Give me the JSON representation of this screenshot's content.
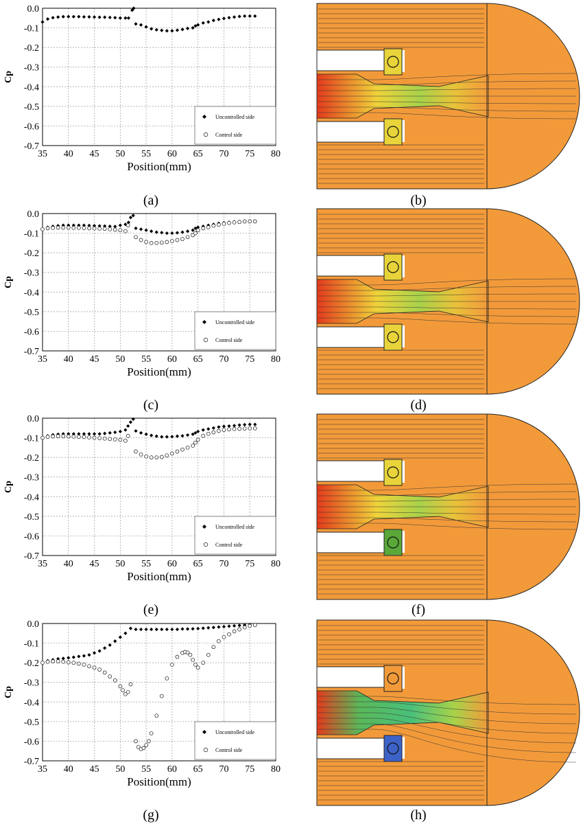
{
  "figure": {
    "panel_labels": [
      "(a)",
      "(b)",
      "(c)",
      "(d)",
      "(e)",
      "(f)",
      "(g)",
      "(h)"
    ]
  },
  "chart_data": [
    {
      "type": "scatter",
      "panel": "(a)",
      "xlabel": "Position(mm)",
      "ylabel": "Cp",
      "xlim": [
        35,
        80
      ],
      "ylim": [
        -0.7,
        0.0
      ],
      "xticks": [
        35,
        40,
        45,
        50,
        55,
        60,
        65,
        70,
        75,
        80
      ],
      "yticks": [
        "0.0",
        "-0.1",
        "-0.2",
        "-0.3",
        "-0.4",
        "-0.5",
        "-0.6",
        "-0.7"
      ],
      "grid": true,
      "legend_position": "bottom-right",
      "series": [
        {
          "name": "Uncontrolled side",
          "marker": "filled-diamond",
          "x": [
            35,
            36,
            37,
            38,
            39,
            40,
            41,
            42,
            43,
            44,
            45,
            46,
            47,
            48,
            49,
            50,
            51,
            51.6,
            52.3,
            52.6,
            53,
            54,
            55,
            56,
            57,
            58,
            59,
            60,
            61,
            62,
            63,
            64,
            64.5,
            65,
            66,
            67,
            68,
            69,
            70,
            71,
            72,
            73,
            74,
            75,
            76
          ],
          "y": [
            -0.07,
            -0.055,
            -0.048,
            -0.045,
            -0.043,
            -0.043,
            -0.043,
            -0.043,
            -0.044,
            -0.044,
            -0.045,
            -0.046,
            -0.046,
            -0.047,
            -0.048,
            -0.05,
            -0.05,
            -0.05,
            -0.01,
            0.0,
            -0.08,
            -0.085,
            -0.095,
            -0.105,
            -0.11,
            -0.113,
            -0.115,
            -0.115,
            -0.112,
            -0.108,
            -0.103,
            -0.1,
            -0.09,
            -0.085,
            -0.075,
            -0.07,
            -0.062,
            -0.057,
            -0.052,
            -0.048,
            -0.045,
            -0.042,
            -0.04,
            -0.04,
            -0.04
          ]
        },
        {
          "name": "Control side",
          "marker": "open-circle",
          "x": [],
          "y": []
        }
      ]
    },
    {
      "type": "scatter",
      "panel": "(c)",
      "xlabel": "Position(mm)",
      "ylabel": "Cp",
      "xlim": [
        35,
        80
      ],
      "ylim": [
        -0.7,
        0.0
      ],
      "xticks": [
        35,
        40,
        45,
        50,
        55,
        60,
        65,
        70,
        75,
        80
      ],
      "yticks": [
        "0.0",
        "-0.1",
        "-0.2",
        "-0.3",
        "-0.4",
        "-0.5",
        "-0.6",
        "-0.7"
      ],
      "grid": true,
      "legend_position": "bottom-right",
      "series": [
        {
          "name": "Uncontrolled side",
          "marker": "filled-diamond",
          "x": [
            35,
            36,
            37,
            38,
            39,
            40,
            41,
            42,
            43,
            44,
            45,
            46,
            47,
            48,
            49,
            50,
            51,
            51.6,
            52,
            52.5,
            53,
            54,
            55,
            56,
            57,
            58,
            59,
            60,
            61,
            62,
            63,
            64,
            64.5,
            65,
            66,
            67,
            68,
            69,
            70,
            71,
            72,
            73,
            74,
            75,
            76
          ],
          "y": [
            -0.08,
            -0.07,
            -0.065,
            -0.062,
            -0.06,
            -0.06,
            -0.06,
            -0.06,
            -0.06,
            -0.061,
            -0.062,
            -0.063,
            -0.064,
            -0.065,
            -0.066,
            -0.06,
            -0.055,
            -0.045,
            -0.02,
            -0.01,
            -0.075,
            -0.08,
            -0.085,
            -0.09,
            -0.095,
            -0.097,
            -0.1,
            -0.1,
            -0.098,
            -0.095,
            -0.09,
            -0.085,
            -0.075,
            -0.07,
            -0.065,
            -0.06,
            -0.055,
            -0.05,
            -0.047,
            -0.044,
            -0.042,
            -0.04,
            -0.038,
            -0.038,
            -0.038
          ]
        },
        {
          "name": "Control side",
          "marker": "open-circle",
          "x": [
            35,
            36,
            37,
            38,
            39,
            40,
            41,
            42,
            43,
            44,
            45,
            46,
            47,
            48,
            49,
            50,
            51,
            51.5,
            53,
            54,
            55,
            56,
            57,
            58,
            59,
            60,
            61,
            62,
            63,
            64,
            64.5,
            65,
            66,
            67,
            68,
            69,
            70,
            71,
            72,
            73,
            74,
            75,
            76
          ],
          "y": [
            -0.08,
            -0.075,
            -0.073,
            -0.072,
            -0.072,
            -0.072,
            -0.073,
            -0.073,
            -0.074,
            -0.075,
            -0.076,
            -0.077,
            -0.078,
            -0.08,
            -0.082,
            -0.085,
            -0.09,
            -0.06,
            -0.12,
            -0.135,
            -0.145,
            -0.15,
            -0.15,
            -0.148,
            -0.145,
            -0.14,
            -0.135,
            -0.13,
            -0.12,
            -0.11,
            -0.1,
            -0.085,
            -0.075,
            -0.07,
            -0.062,
            -0.057,
            -0.052,
            -0.048,
            -0.045,
            -0.043,
            -0.04,
            -0.04,
            -0.04
          ]
        }
      ]
    },
    {
      "type": "scatter",
      "panel": "(e)",
      "xlabel": "Position(mm)",
      "ylabel": "Cp",
      "xlim": [
        35,
        80
      ],
      "ylim": [
        -0.7,
        0.0
      ],
      "xticks": [
        35,
        40,
        45,
        50,
        55,
        60,
        65,
        70,
        75,
        80
      ],
      "yticks": [
        "0.0",
        "-0.1",
        "-0.2",
        "-0.3",
        "-0.4",
        "-0.5",
        "-0.6",
        "-0.7"
      ],
      "grid": true,
      "legend_position": "bottom-right",
      "series": [
        {
          "name": "Uncontrolled side",
          "marker": "filled-diamond",
          "x": [
            35,
            36,
            37,
            38,
            39,
            40,
            41,
            42,
            43,
            44,
            45,
            46,
            47,
            48,
            49,
            50,
            51,
            51.5,
            52,
            52.5,
            53,
            54,
            55,
            56,
            57,
            58,
            59,
            60,
            61,
            62,
            63,
            64,
            64.5,
            65,
            66,
            67,
            68,
            69,
            70,
            71,
            72,
            73,
            74,
            75,
            76
          ],
          "y": [
            -0.1,
            -0.09,
            -0.085,
            -0.082,
            -0.08,
            -0.08,
            -0.08,
            -0.08,
            -0.08,
            -0.08,
            -0.08,
            -0.08,
            -0.078,
            -0.075,
            -0.072,
            -0.068,
            -0.06,
            -0.04,
            -0.02,
            -0.005,
            -0.065,
            -0.075,
            -0.082,
            -0.088,
            -0.092,
            -0.095,
            -0.095,
            -0.094,
            -0.092,
            -0.09,
            -0.086,
            -0.082,
            -0.075,
            -0.068,
            -0.06,
            -0.055,
            -0.05,
            -0.045,
            -0.042,
            -0.04,
            -0.038,
            -0.035,
            -0.033,
            -0.032,
            -0.032
          ]
        },
        {
          "name": "Control side",
          "marker": "open-circle",
          "x": [
            35,
            36,
            37,
            38,
            39,
            40,
            41,
            42,
            43,
            44,
            45,
            46,
            47,
            48,
            49,
            50,
            51,
            51.5,
            53,
            54,
            55,
            56,
            57,
            58,
            59,
            60,
            61,
            62,
            63,
            64,
            64.5,
            65,
            66,
            67,
            68,
            69,
            70,
            71,
            72,
            73,
            74,
            75,
            76
          ],
          "y": [
            -0.1,
            -0.095,
            -0.093,
            -0.092,
            -0.092,
            -0.093,
            -0.094,
            -0.095,
            -0.096,
            -0.098,
            -0.1,
            -0.102,
            -0.104,
            -0.106,
            -0.108,
            -0.11,
            -0.115,
            -0.09,
            -0.17,
            -0.185,
            -0.195,
            -0.2,
            -0.2,
            -0.198,
            -0.19,
            -0.18,
            -0.17,
            -0.16,
            -0.15,
            -0.14,
            -0.125,
            -0.11,
            -0.09,
            -0.08,
            -0.072,
            -0.065,
            -0.06,
            -0.057,
            -0.055,
            -0.054,
            -0.053,
            -0.052,
            -0.052
          ]
        }
      ]
    },
    {
      "type": "scatter",
      "panel": "(g)",
      "xlabel": "Position(mm)",
      "ylabel": "Cp",
      "xlim": [
        35,
        80
      ],
      "ylim": [
        -0.7,
        0.0
      ],
      "xticks": [
        35,
        40,
        45,
        50,
        55,
        60,
        65,
        70,
        75,
        80
      ],
      "yticks": [
        "0.0",
        "-0.1",
        "-0.2",
        "-0.3",
        "-0.4",
        "-0.5",
        "-0.6",
        "-0.7"
      ],
      "grid": true,
      "legend_position": "bottom-right",
      "series": [
        {
          "name": "Uncontrolled side",
          "marker": "filled-diamond",
          "x": [
            35,
            36,
            37,
            38,
            39,
            40,
            41,
            42,
            43,
            44,
            45,
            46,
            47,
            48,
            49,
            50,
            51,
            52,
            53,
            54,
            55,
            56,
            57,
            58,
            59,
            60,
            61,
            62,
            63,
            64,
            65,
            66,
            67,
            68,
            69,
            70,
            71,
            72,
            73,
            74,
            75,
            76
          ],
          "y": [
            -0.2,
            -0.19,
            -0.185,
            -0.18,
            -0.178,
            -0.175,
            -0.172,
            -0.168,
            -0.165,
            -0.16,
            -0.15,
            -0.14,
            -0.125,
            -0.11,
            -0.09,
            -0.07,
            -0.05,
            -0.025,
            -0.03,
            -0.03,
            -0.03,
            -0.03,
            -0.03,
            -0.03,
            -0.03,
            -0.03,
            -0.03,
            -0.028,
            -0.028,
            -0.027,
            -0.026,
            -0.024,
            -0.022,
            -0.02,
            -0.018,
            -0.016,
            -0.014,
            -0.012,
            -0.01,
            -0.008,
            -0.006,
            -0.005
          ]
        },
        {
          "name": "Control side",
          "marker": "open-circle",
          "x": [
            35,
            36,
            37,
            38,
            39,
            40,
            41,
            42,
            43,
            44,
            45,
            46,
            47,
            48,
            49,
            50,
            50.5,
            51,
            51.5,
            52,
            53,
            53.5,
            54,
            54.5,
            55,
            55.5,
            56,
            57,
            58,
            59,
            60,
            61,
            62,
            62.5,
            63,
            63.5,
            64,
            64.5,
            65,
            66,
            67,
            68,
            69,
            70,
            71,
            72,
            73,
            74,
            75,
            76
          ],
          "y": [
            -0.2,
            -0.195,
            -0.193,
            -0.193,
            -0.195,
            -0.198,
            -0.2,
            -0.205,
            -0.21,
            -0.218,
            -0.225,
            -0.235,
            -0.25,
            -0.27,
            -0.29,
            -0.32,
            -0.34,
            -0.36,
            -0.35,
            -0.31,
            -0.6,
            -0.63,
            -0.64,
            -0.635,
            -0.62,
            -0.6,
            -0.56,
            -0.47,
            -0.37,
            -0.28,
            -0.21,
            -0.17,
            -0.15,
            -0.145,
            -0.148,
            -0.16,
            -0.185,
            -0.21,
            -0.225,
            -0.2,
            -0.16,
            -0.12,
            -0.09,
            -0.07,
            -0.055,
            -0.04,
            -0.03,
            -0.02,
            -0.012,
            -0.008
          ]
        }
      ]
    }
  ]
}
